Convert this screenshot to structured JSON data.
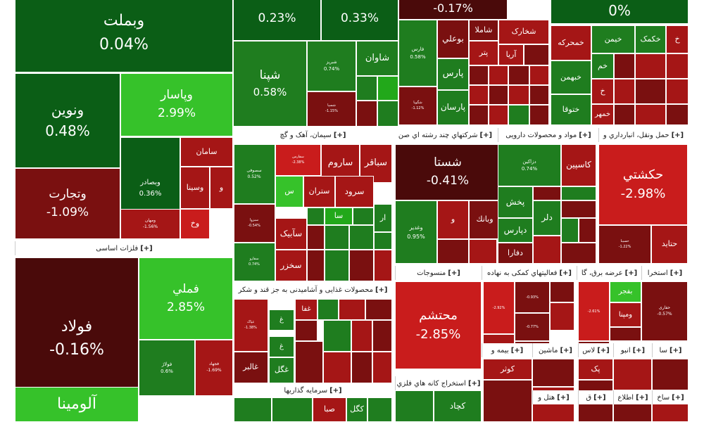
{
  "chart_data": {
    "type": "treemap",
    "colors": {
      "deep_green": "#0b5e16",
      "mid_green": "#1f7d1f",
      "bright_green": "#22a81a",
      "light_green": "#36c22a",
      "deep_red": "#4a0a0a",
      "dark_red": "#7a1010",
      "red": "#a51616",
      "bright_red": "#c91c1c"
    },
    "sectors": [
      {
        "name": "فلزات اساسی",
        "expand": "[+]"
      },
      {
        "name": "سیمان، آهک و گچ",
        "expand": "[+]"
      },
      {
        "name": "شرکتهاي چند رشته اي صن",
        "expand": "[+]"
      },
      {
        "name": "مواد و محصولات دارویی",
        "expand": "[+]"
      },
      {
        "name": "حمل ونقل، انبارداري و",
        "expand": "[+]"
      },
      {
        "name": "محصولات غذایی و آشامیدنی به جز قند و شکر",
        "expand": "[+]"
      },
      {
        "name": "منسوجات",
        "expand": "[+]"
      },
      {
        "name": "فعالیتهاي کمکی به نهاده",
        "expand": "[+]"
      },
      {
        "name": "عرضه برق، گا",
        "expand": "[+]"
      },
      {
        "name": "استخرا",
        "expand": "[+]"
      },
      {
        "name": "سرمایه گذاریها",
        "expand": "[+]"
      },
      {
        "name": "استخراج کانه هاي فلزي",
        "expand": "[+]"
      },
      {
        "name": "بیمه و",
        "expand": "[+]"
      },
      {
        "name": "ماشین",
        "expand": "[+]"
      },
      {
        "name": "لاس",
        "expand": "[+]"
      },
      {
        "name": "انبو",
        "expand": "[+]"
      },
      {
        "name": "سا",
        "expand": "[+]"
      },
      {
        "name": "هتل و",
        "expand": "[+]"
      },
      {
        "name": "ق",
        "expand": "[+]"
      },
      {
        "name": "اطلاع",
        "expand": "[+]"
      },
      {
        "name": "ساخ",
        "expand": "[+]"
      }
    ],
    "stocks": [
      {
        "symbol": "وبملت",
        "change": "0.04%",
        "value": 0.04
      },
      {
        "symbol": "ونوین",
        "change": "0.48%",
        "value": 0.48
      },
      {
        "symbol": "وپاسار",
        "change": "2.99%",
        "value": 2.99
      },
      {
        "symbol": "وتجارت",
        "change": "-1.09%",
        "value": -1.09
      },
      {
        "symbol": "وبصادر",
        "change": "0.36%",
        "value": 0.36
      },
      {
        "symbol": "سامان",
        "change": "",
        "value": -1.5
      },
      {
        "symbol": "وسینا",
        "change": "",
        "value": -2.0
      },
      {
        "symbol": "و",
        "change": "",
        "value": -1.5
      },
      {
        "symbol": "وخ",
        "change": "",
        "value": -2.5
      },
      {
        "symbol": "ومهان",
        "change": "-1.56%",
        "value": -1.56
      },
      {
        "symbol": "",
        "change": "0.23%",
        "value": 0.23
      },
      {
        "symbol": "",
        "change": "0.33%",
        "value": 0.33
      },
      {
        "symbol": "شپنا",
        "change": "0.58%",
        "value": 0.58
      },
      {
        "symbol": "شبریز",
        "change": "0.74%",
        "value": 0.74
      },
      {
        "symbol": "شاوان",
        "change": "",
        "value": 1.0
      },
      {
        "symbol": "شسپا",
        "change": "-1.15%",
        "value": -1.15
      },
      {
        "symbol": "",
        "change": "-0.17%",
        "value": -0.17
      },
      {
        "symbol": "",
        "change": "0%",
        "value": 0
      },
      {
        "symbol": "فارس",
        "change": "0.58%",
        "value": 0.58
      },
      {
        "symbol": "بوعلي",
        "change": "",
        "value": -0.5
      },
      {
        "symbol": "شاملا",
        "change": "",
        "value": -1.0
      },
      {
        "symbol": "شخارک",
        "change": "",
        "value": -2.0
      },
      {
        "symbol": "پتر",
        "change": "",
        "value": -1.5
      },
      {
        "symbol": "آريا",
        "change": "",
        "value": -2.0
      },
      {
        "symbol": "پارس",
        "change": "",
        "value": 0.8
      },
      {
        "symbol": "پارسان",
        "change": "",
        "value": 0.6
      },
      {
        "symbol": "شگویا",
        "change": "-1.12%",
        "value": -1.12
      },
      {
        "symbol": "خمحرکه",
        "change": "",
        "value": -2.0
      },
      {
        "symbol": "خیمن",
        "change": "",
        "value": 0.5
      },
      {
        "symbol": "خکمک",
        "change": "",
        "value": 0.5
      },
      {
        "symbol": "خ",
        "change": "",
        "value": -2.0
      },
      {
        "symbol": "خم",
        "change": "",
        "value": 0.5
      },
      {
        "symbol": "خبهمن",
        "change": "",
        "value": 0.5
      },
      {
        "symbol": "خ",
        "change": "",
        "value": -2.0
      },
      {
        "symbol": "ختوقا",
        "change": "",
        "value": 0.5
      },
      {
        "symbol": "خمهر",
        "change": "",
        "value": -1.5
      },
      {
        "symbol": "فملي",
        "change": "2.85%",
        "value": 2.85
      },
      {
        "symbol": "فولاد",
        "change": "-0.16%",
        "value": -0.16
      },
      {
        "symbol": "فولاژ",
        "change": "0.6%",
        "value": 0.6
      },
      {
        "symbol": "فجهاد",
        "change": "-1.69%",
        "value": -1.69
      },
      {
        "symbol": "آلومینا",
        "change": "",
        "value": 3.0
      },
      {
        "symbol": "سفارس",
        "change": "-2.38%",
        "value": -2.38
      },
      {
        "symbol": "سصوفی",
        "change": "0.52%",
        "value": 0.52
      },
      {
        "symbol": "ساروم",
        "change": "",
        "value": -2.0
      },
      {
        "symbol": "سباقر",
        "change": "",
        "value": -2.0
      },
      {
        "symbol": "س",
        "change": "",
        "value": 3.0
      },
      {
        "symbol": "ستران",
        "change": "",
        "value": -1.5
      },
      {
        "symbol": "سرود",
        "change": "",
        "value": -2.0
      },
      {
        "symbol": "سبزوا",
        "change": "-0.54%",
        "value": -0.54
      },
      {
        "symbol": "سا",
        "change": "",
        "value": 2.0
      },
      {
        "symbol": "ار",
        "change": "",
        "value": 0.5
      },
      {
        "symbol": "سآبیک",
        "change": "",
        "value": -1.5
      },
      {
        "symbol": "سخزر",
        "change": "",
        "value": -2.0
      },
      {
        "symbol": "سفارو",
        "change": "0.74%",
        "value": 0.74
      },
      {
        "symbol": "شستا",
        "change": "-0.41%",
        "value": -0.41
      },
      {
        "symbol": "وغدير",
        "change": "0.95%",
        "value": 0.95
      },
      {
        "symbol": "و",
        "change": "",
        "value": -2.0
      },
      {
        "symbol": "وبانك",
        "change": "",
        "value": -1.0
      },
      {
        "symbol": "دزاکین",
        "change": "0.74%",
        "value": 0.74
      },
      {
        "symbol": "کاسپین",
        "change": "",
        "value": -1.5
      },
      {
        "symbol": "پخش",
        "change": "",
        "value": 0.5
      },
      {
        "symbol": "دلر",
        "change": "",
        "value": 0.5
      },
      {
        "symbol": "دپارس",
        "change": "",
        "value": 0.5
      },
      {
        "symbol": "دفارا",
        "change": "",
        "value": -1.0
      },
      {
        "symbol": "حکشتي",
        "change": "-2.98%",
        "value": -2.98
      },
      {
        "symbol": "حسینا",
        "change": "-1.22%",
        "value": -1.22
      },
      {
        "symbol": "حتاید",
        "change": "",
        "value": -1.5
      },
      {
        "symbol": "غپاک",
        "change": "-1.38%",
        "value": -1.38
      },
      {
        "symbol": "غفا",
        "change": "",
        "value": -2.0
      },
      {
        "symbol": "غ",
        "change": "",
        "value": 0.5
      },
      {
        "symbol": "غ",
        "change": "",
        "value": 0.5
      },
      {
        "symbol": "غالبر",
        "change": "",
        "value": -1.0
      },
      {
        "symbol": "غگل",
        "change": "",
        "value": 0.5
      },
      {
        "symbol": "محتشم",
        "change": "-2.85%",
        "value": -2.85
      },
      {
        "symbol": "",
        "change": "-0.93%",
        "value": -0.93
      },
      {
        "symbol": "",
        "change": "-2.92%",
        "value": -2.92
      },
      {
        "symbol": "",
        "change": "-0.77%",
        "value": -0.77
      },
      {
        "symbol": "",
        "change": "-2.61%",
        "value": -2.61
      },
      {
        "symbol": "بفجر",
        "change": "",
        "value": 2.5
      },
      {
        "symbol": "ومپنا",
        "change": "",
        "value": -1.5
      },
      {
        "symbol": "حفاری",
        "change": "-0.57%",
        "value": -0.57
      },
      {
        "symbol": "وبهمن",
        "change": "",
        "value": 0.5
      },
      {
        "symbol": "صبا",
        "change": "",
        "value": -1.5
      },
      {
        "symbol": "کگل",
        "change": "",
        "value": 0.5
      },
      {
        "symbol": "کچاد",
        "change": "",
        "value": 0.5
      },
      {
        "symbol": "کوثر",
        "change": "",
        "value": -2.0
      },
      {
        "symbol": "پک",
        "change": "",
        "value": -2.0
      }
    ]
  }
}
